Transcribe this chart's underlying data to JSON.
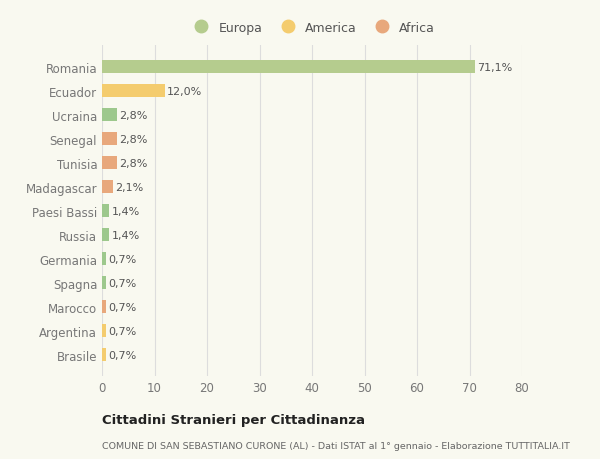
{
  "categories": [
    "Brasile",
    "Argentina",
    "Marocco",
    "Spagna",
    "Germania",
    "Russia",
    "Paesi Bassi",
    "Madagascar",
    "Tunisia",
    "Senegal",
    "Ucraina",
    "Ecuador",
    "Romania"
  ],
  "values": [
    0.7,
    0.7,
    0.7,
    0.7,
    0.7,
    1.4,
    1.4,
    2.1,
    2.8,
    2.8,
    2.8,
    12.0,
    71.1
  ],
  "labels": [
    "0,7%",
    "0,7%",
    "0,7%",
    "0,7%",
    "0,7%",
    "1,4%",
    "1,4%",
    "2,1%",
    "2,8%",
    "2,8%",
    "2,8%",
    "12,0%",
    "71,1%"
  ],
  "colors": [
    "#f4cc6e",
    "#f4cc6e",
    "#e8a87c",
    "#9dc88d",
    "#9dc88d",
    "#9dc88d",
    "#9dc88d",
    "#e8a87c",
    "#e8a87c",
    "#e8a87c",
    "#9dc88d",
    "#f4cc6e",
    "#b5cc8e"
  ],
  "legend_labels": [
    "Europa",
    "America",
    "Africa"
  ],
  "legend_colors": [
    "#b5cc8e",
    "#f4cc6e",
    "#e8a87c"
  ],
  "title": "Cittadini Stranieri per Cittadinanza",
  "subtitle": "COMUNE DI SAN SEBASTIANO CURONE (AL) - Dati ISTAT al 1° gennaio - Elaborazione TUTTITALIA.IT",
  "xlim": [
    0,
    80
  ],
  "xticks": [
    0,
    10,
    20,
    30,
    40,
    50,
    60,
    70,
    80
  ],
  "background_color": "#f9f9f0",
  "plot_background": "#f9f9f0",
  "grid_color": "#dddddd"
}
